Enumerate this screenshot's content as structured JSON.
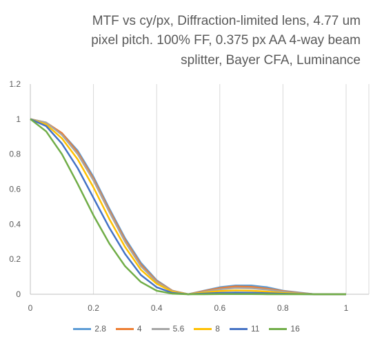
{
  "chart_data": {
    "type": "line",
    "title_lines": [
      "MTF vs cy/px, Diffraction-limited lens, 4.77 um",
      "pixel pitch. 100% FF, 0.375 px AA 4-way beam",
      "splitter, Bayer CFA, Luminance"
    ],
    "xlim": [
      0,
      1
    ],
    "ylim": [
      0,
      1.2
    ],
    "x_ticks": [
      "0",
      "0.2",
      "0.4",
      "0.6",
      "0.8",
      "1"
    ],
    "y_ticks": [
      "0",
      "0.2",
      "0.4",
      "0.6",
      "0.8",
      "1",
      "1.2"
    ],
    "grid": "vertical",
    "legend_position": "bottom",
    "x": [
      0,
      0.05,
      0.1,
      0.15,
      0.2,
      0.25,
      0.3,
      0.35,
      0.4,
      0.45,
      0.5,
      0.55,
      0.6,
      0.65,
      0.7,
      0.75,
      0.8,
      0.85,
      0.9,
      0.95,
      1.0
    ],
    "series": [
      {
        "name": "2.8",
        "color": "#5B9BD5",
        "values": [
          1.0,
          0.98,
          0.92,
          0.82,
          0.67,
          0.49,
          0.32,
          0.18,
          0.08,
          0.02,
          0.0,
          0.02,
          0.04,
          0.05,
          0.05,
          0.04,
          0.02,
          0.01,
          0.0,
          0.0,
          0.0
        ]
      },
      {
        "name": "4",
        "color": "#ED7D31",
        "values": [
          1.0,
          0.98,
          0.92,
          0.81,
          0.66,
          0.48,
          0.31,
          0.17,
          0.075,
          0.02,
          0.0,
          0.018,
          0.035,
          0.045,
          0.042,
          0.032,
          0.018,
          0.008,
          0.0,
          0.0,
          0.0
        ]
      },
      {
        "name": "5.6",
        "color": "#A5A5A5",
        "values": [
          1.0,
          0.98,
          0.91,
          0.8,
          0.65,
          0.47,
          0.3,
          0.16,
          0.07,
          0.018,
          0.0,
          0.014,
          0.028,
          0.036,
          0.034,
          0.026,
          0.015,
          0.006,
          0.0,
          0.0,
          0.0
        ]
      },
      {
        "name": "8",
        "color": "#FFC000",
        "values": [
          1.0,
          0.97,
          0.89,
          0.77,
          0.61,
          0.43,
          0.27,
          0.14,
          0.06,
          0.014,
          0.0,
          0.01,
          0.018,
          0.022,
          0.02,
          0.015,
          0.008,
          0.003,
          0.0,
          0.0,
          0.0
        ]
      },
      {
        "name": "11",
        "color": "#4472C4",
        "values": [
          1.0,
          0.96,
          0.86,
          0.72,
          0.55,
          0.38,
          0.23,
          0.11,
          0.04,
          0.008,
          0.0,
          0.004,
          0.008,
          0.01,
          0.009,
          0.006,
          0.003,
          0.001,
          0.0,
          0.0,
          0.0
        ]
      },
      {
        "name": "16",
        "color": "#70AD47",
        "values": [
          1.0,
          0.93,
          0.8,
          0.63,
          0.45,
          0.29,
          0.16,
          0.07,
          0.02,
          0.003,
          0.0,
          0.0,
          0.001,
          0.001,
          0.001,
          0.0,
          0.0,
          0.0,
          0.0,
          0.0,
          0.0
        ]
      }
    ]
  }
}
